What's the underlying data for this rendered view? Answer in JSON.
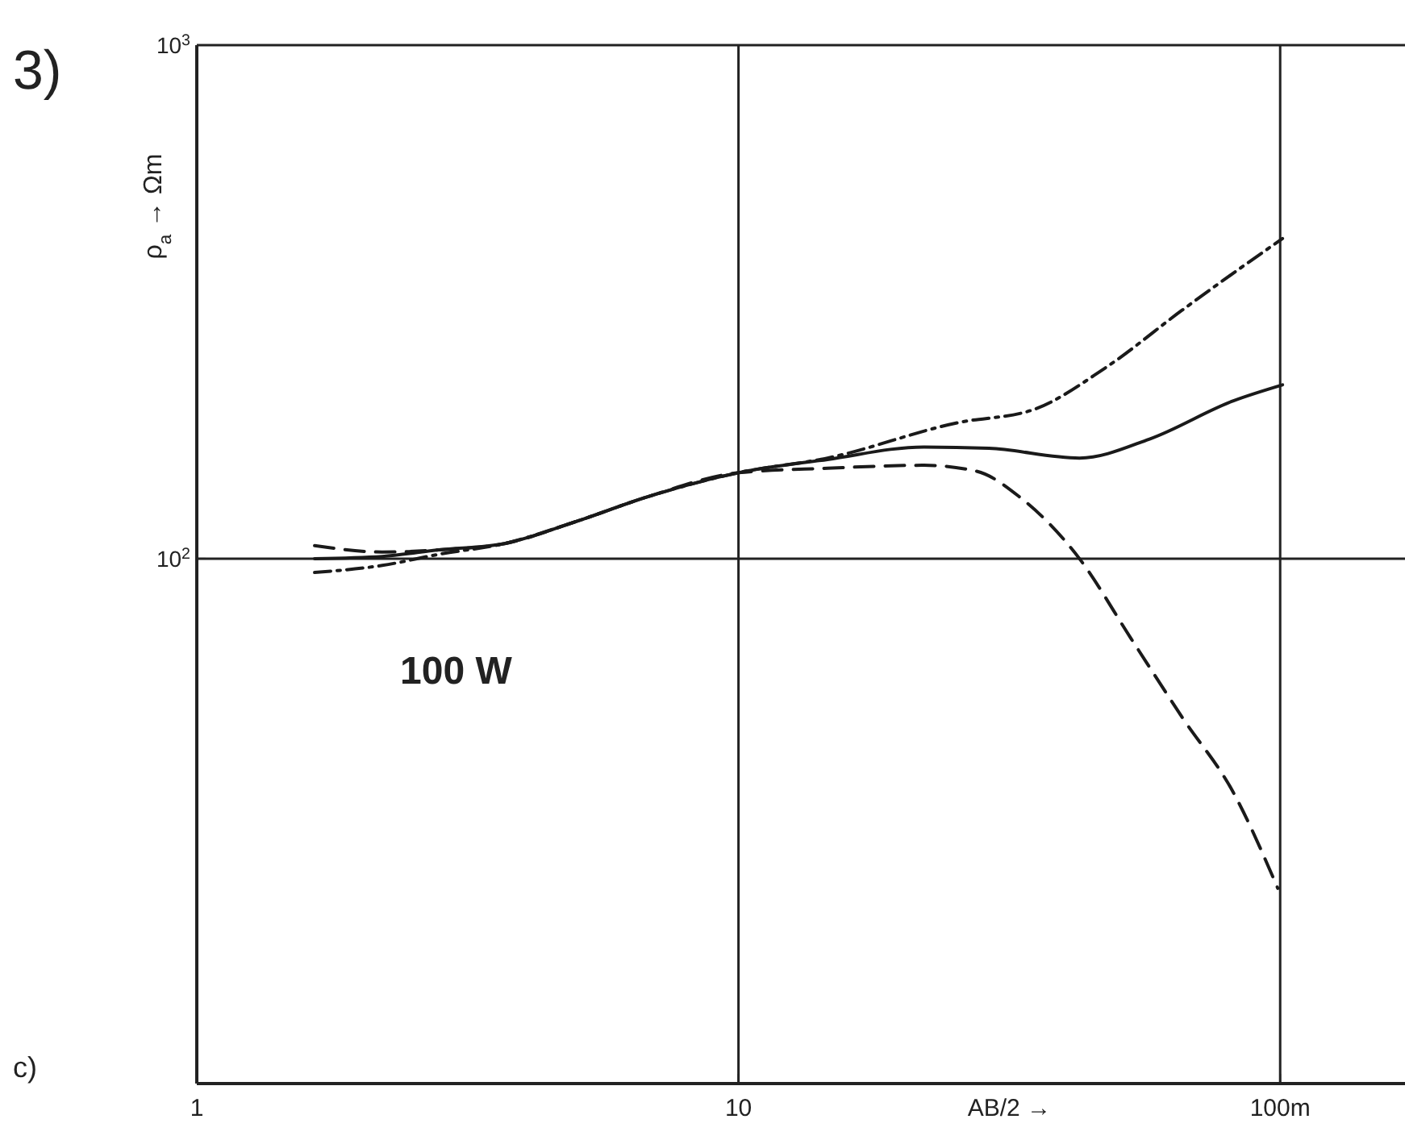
{
  "chart_data": {
    "type": "line",
    "xlabel": "AB/2 →",
    "ylabel": "ρ$_{a}$ → Ωm",
    "log": "xy",
    "grid": true,
    "xlim": [
      1,
      170
    ],
    "ylim": [
      9.5,
      1000
    ],
    "xticks": [
      1,
      10,
      {
        "value": 100,
        "label": "100m"
      }
    ],
    "yticks": [
      {
        "value": 100,
        "label": "10$^{2}$"
      },
      {
        "value": 1000,
        "label": "10$^{3}$"
      }
    ],
    "annotations": [
      "3)",
      "c)",
      "100 W"
    ],
    "series": [
      {
        "color": "#1a1a1a",
        "line_style": "solid",
        "x": [
          1.65,
          2.2,
          2.8,
          3.7,
          5,
          6.8,
          10,
          14.6,
          22,
          29,
          42.6,
          57.4,
          82,
          101
        ],
        "values": [
          100,
          101,
          104,
          107,
          118,
          132,
          147,
          156,
          165,
          164,
          157,
          171,
          203,
          218
        ]
      },
      {
        "color": "#1a1a1a",
        "line_style": "dashed",
        "x": [
          1.65,
          2.2,
          2.8,
          3.7,
          5,
          6.8,
          10,
          14.6,
          22,
          27.5,
          33,
          42.6,
          53,
          66,
          82,
          99
        ],
        "values": [
          106,
          103,
          104,
          107,
          118,
          132,
          147,
          150,
          152,
          148,
          132,
          100,
          70,
          49,
          35,
          22.8
        ]
      },
      {
        "color": "#1a1a1a",
        "line_style": "dotted",
        "x": [
          1.65,
          2.2,
          2.8,
          3.7,
          5,
          6.8,
          10,
          14.6,
          25.4,
          35,
          47.5,
          66,
          86,
          101
        ],
        "values": [
          94,
          97,
          102,
          107,
          118,
          132,
          147,
          157,
          184,
          195,
          235,
          305,
          373,
          420
        ]
      }
    ]
  }
}
